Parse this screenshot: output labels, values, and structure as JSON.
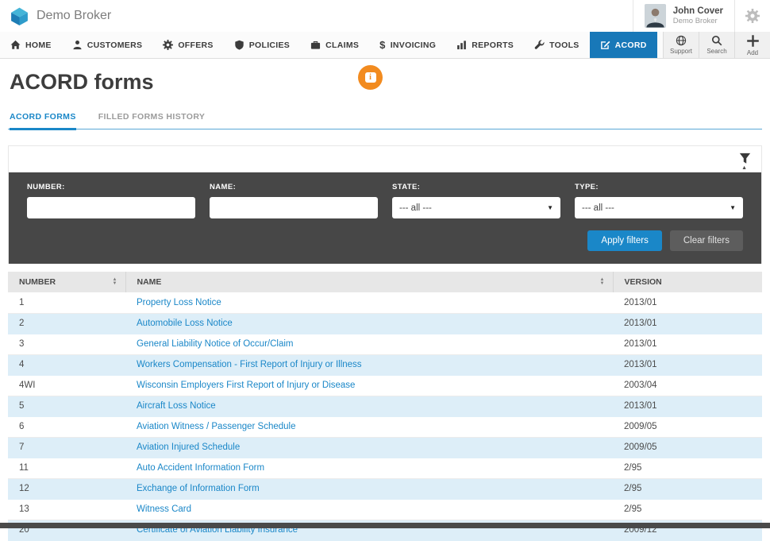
{
  "colors": {
    "accent_blue": "#1a87c8",
    "nav_active_blue": "#1878b8",
    "panel_dark": "#474747",
    "row_alt_blue": "#ddeef8",
    "info_orange": "#f28b1f"
  },
  "topbar": {
    "brand": "Demo Broker",
    "user_name": "John Cover",
    "user_role": "Demo Broker",
    "icons": [
      "insly-cube-logo",
      "user-avatar",
      "gear-icon"
    ]
  },
  "nav": {
    "items": [
      {
        "label": "HOME",
        "icon": "home-icon",
        "active": false
      },
      {
        "label": "CUSTOMERS",
        "icon": "customers-icon",
        "active": false
      },
      {
        "label": "OFFERS",
        "icon": "offers-gear-icon",
        "active": false
      },
      {
        "label": "POLICIES",
        "icon": "policies-shield-icon",
        "active": false
      },
      {
        "label": "CLAIMS",
        "icon": "claims-briefcase-icon",
        "active": false
      },
      {
        "label": "INVOICING",
        "icon": "invoicing-dollar-icon",
        "active": false
      },
      {
        "label": "REPORTS",
        "icon": "reports-chart-icon",
        "active": false
      },
      {
        "label": "TOOLS",
        "icon": "tools-wrench-icon",
        "active": false
      },
      {
        "label": "ACORD",
        "icon": "acord-form-icon",
        "active": true
      }
    ],
    "utilities": [
      {
        "label": "Support",
        "icon": "support-globe-icon"
      },
      {
        "label": "Search",
        "icon": "search-icon"
      },
      {
        "label": "Add",
        "icon": "add-plus-icon"
      }
    ]
  },
  "page": {
    "title": "ACORD forms",
    "tabs": [
      {
        "label": "ACORD FORMS",
        "active": true
      },
      {
        "label": "FILLED FORMS HISTORY",
        "active": false
      }
    ]
  },
  "filters": {
    "number_label": "NUMBER:",
    "name_label": "NAME:",
    "state_label": "STATE:",
    "type_label": "TYPE:",
    "state_value": "--- all ---",
    "type_value": "--- all ---",
    "apply_button": "Apply filters",
    "clear_button": "Clear filters"
  },
  "table": {
    "headers": [
      "NUMBER",
      "NAME",
      "VERSION"
    ],
    "rows": [
      {
        "number": "1",
        "name": "Property Loss Notice",
        "version": "2013/01"
      },
      {
        "number": "2",
        "name": "Automobile Loss Notice",
        "version": "2013/01"
      },
      {
        "number": "3",
        "name": "General Liability Notice of Occur/Claim",
        "version": "2013/01"
      },
      {
        "number": "4",
        "name": "Workers Compensation - First Report of Injury or Illness",
        "version": "2013/01"
      },
      {
        "number": "4WI",
        "name": "Wisconsin Employers First Report of Injury or Disease",
        "version": "2003/04"
      },
      {
        "number": "5",
        "name": "Aircraft Loss Notice",
        "version": "2013/01"
      },
      {
        "number": "6",
        "name": "Aviation Witness / Passenger Schedule",
        "version": "2009/05"
      },
      {
        "number": "7",
        "name": "Aviation Injured Schedule",
        "version": "2009/05"
      },
      {
        "number": "11",
        "name": "Auto Accident Information Form",
        "version": "2/95"
      },
      {
        "number": "12",
        "name": "Exchange of Information Form",
        "version": "2/95"
      },
      {
        "number": "13",
        "name": "Witness Card",
        "version": "2/95"
      },
      {
        "number": "20",
        "name": "Certificate of Aviation Liability Insurance",
        "version": "2009/12"
      }
    ]
  }
}
